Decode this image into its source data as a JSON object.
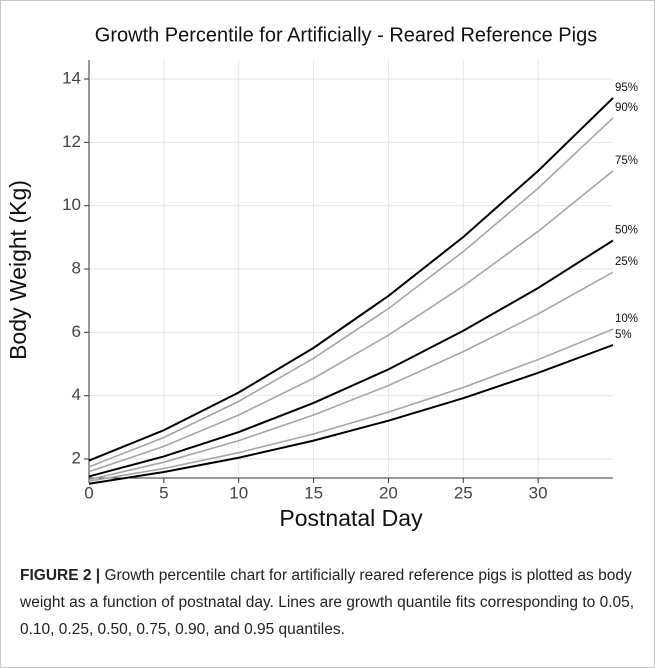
{
  "chart_data": {
    "type": "line",
    "title": "Growth Percentile for Artificially - Reared Reference Pigs",
    "x_label": "Postnatal Day",
    "y_label": "Body Weight (Kg)",
    "x": [
      0,
      5,
      10,
      15,
      20,
      25,
      30,
      35
    ],
    "xlim": [
      0,
      35
    ],
    "xticks": [
      0,
      5,
      10,
      15,
      20,
      25,
      30
    ],
    "ylim": [
      1.4,
      14.6
    ],
    "yticks": [
      2,
      4,
      6,
      8,
      10,
      12,
      14
    ],
    "grid": true,
    "series": [
      {
        "name": "95%",
        "color": "#000000",
        "values": [
          1.95,
          2.91,
          4.1,
          5.51,
          7.15,
          9.01,
          11.1,
          13.4
        ]
      },
      {
        "name": "90%",
        "color": "#a6a6a6",
        "values": [
          1.75,
          2.68,
          3.82,
          5.18,
          6.75,
          8.55,
          10.55,
          12.77
        ]
      },
      {
        "name": "75%",
        "color": "#a6a6a6",
        "values": [
          1.6,
          2.4,
          3.39,
          4.55,
          5.91,
          7.46,
          9.19,
          11.1
        ]
      },
      {
        "name": "50%",
        "color": "#000000",
        "values": [
          1.45,
          2.08,
          2.85,
          3.77,
          4.83,
          6.05,
          7.4,
          8.9
        ]
      },
      {
        "name": "25%",
        "color": "#a6a6a6",
        "values": [
          1.35,
          1.9,
          2.58,
          3.39,
          4.32,
          5.39,
          6.58,
          7.9
        ]
      },
      {
        "name": "10%",
        "color": "#a6a6a6",
        "values": [
          1.3,
          1.7,
          2.2,
          2.79,
          3.48,
          4.26,
          5.14,
          6.1
        ]
      },
      {
        "name": "5%",
        "color": "#000000",
        "values": [
          1.22,
          1.59,
          2.04,
          2.58,
          3.21,
          3.92,
          4.72,
          5.6
        ]
      }
    ]
  },
  "caption": {
    "label": "FIGURE 2 |",
    "text": "Growth percentile chart for artificially reared reference pigs is plotted as body weight as a function of postnatal day. Lines are growth quantile fits corresponding to 0.05, 0.10, 0.25, 0.50, 0.75, 0.90, and 0.95 quantiles."
  }
}
